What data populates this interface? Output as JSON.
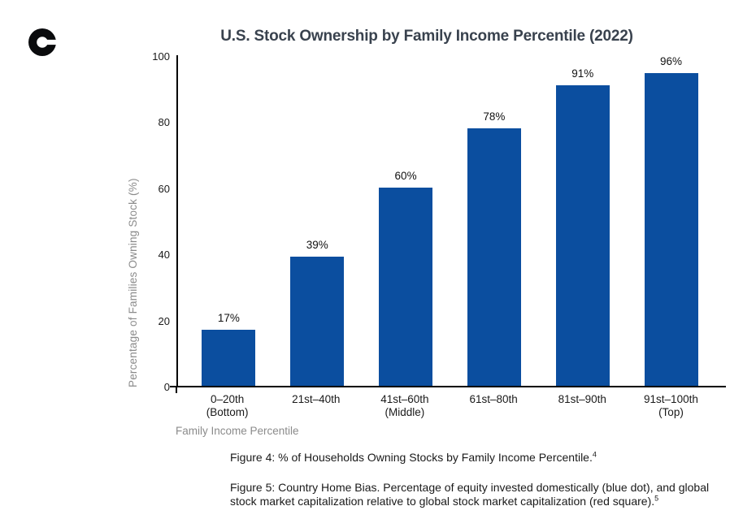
{
  "brand": {
    "logo_icon": "coinbase-c",
    "color": "#0a0b0d"
  },
  "chart_data": {
    "type": "bar",
    "title": "U.S. Stock Ownership by Family Income Percentile (2022)",
    "xlabel": "Family Income Percentile",
    "ylabel": "Percentage of Families Owning Stock (%)",
    "categories": [
      [
        "0–20th",
        "(Bottom)"
      ],
      [
        "21st–40th"
      ],
      [
        "41st–60th",
        "(Middle)"
      ],
      [
        "61st–80th"
      ],
      [
        "81st–90th"
      ],
      [
        "91st–100th",
        "(Top)"
      ]
    ],
    "values": [
      17,
      39,
      60,
      78,
      91,
      96
    ],
    "value_labels": [
      "17%",
      "39%",
      "60%",
      "78%",
      "91%",
      "96%"
    ],
    "ylim": [
      0,
      100
    ],
    "yticks": [
      0,
      20,
      40,
      60,
      80,
      100
    ],
    "bar_color": "#0b4e9f",
    "grid": false,
    "legend": null
  },
  "colors": {
    "background": "#ffffff",
    "title_text": "#39424e",
    "axis_line": "#000000",
    "tick_text": "#1a1a1a",
    "muted_text": "#8b8b8b",
    "caption_text": "#1a1a1a"
  },
  "captions": {
    "figure4": {
      "text": "Figure 4: % of Households Owning Stocks by Family Income Percentile.",
      "footnote": "4"
    },
    "figure5": {
      "text": "Figure 5: Country Home Bias. Percentage of equity invested domestically (blue dot), and global stock market capitalization relative to global stock market capitalization (red square).",
      "footnote": "5"
    }
  }
}
